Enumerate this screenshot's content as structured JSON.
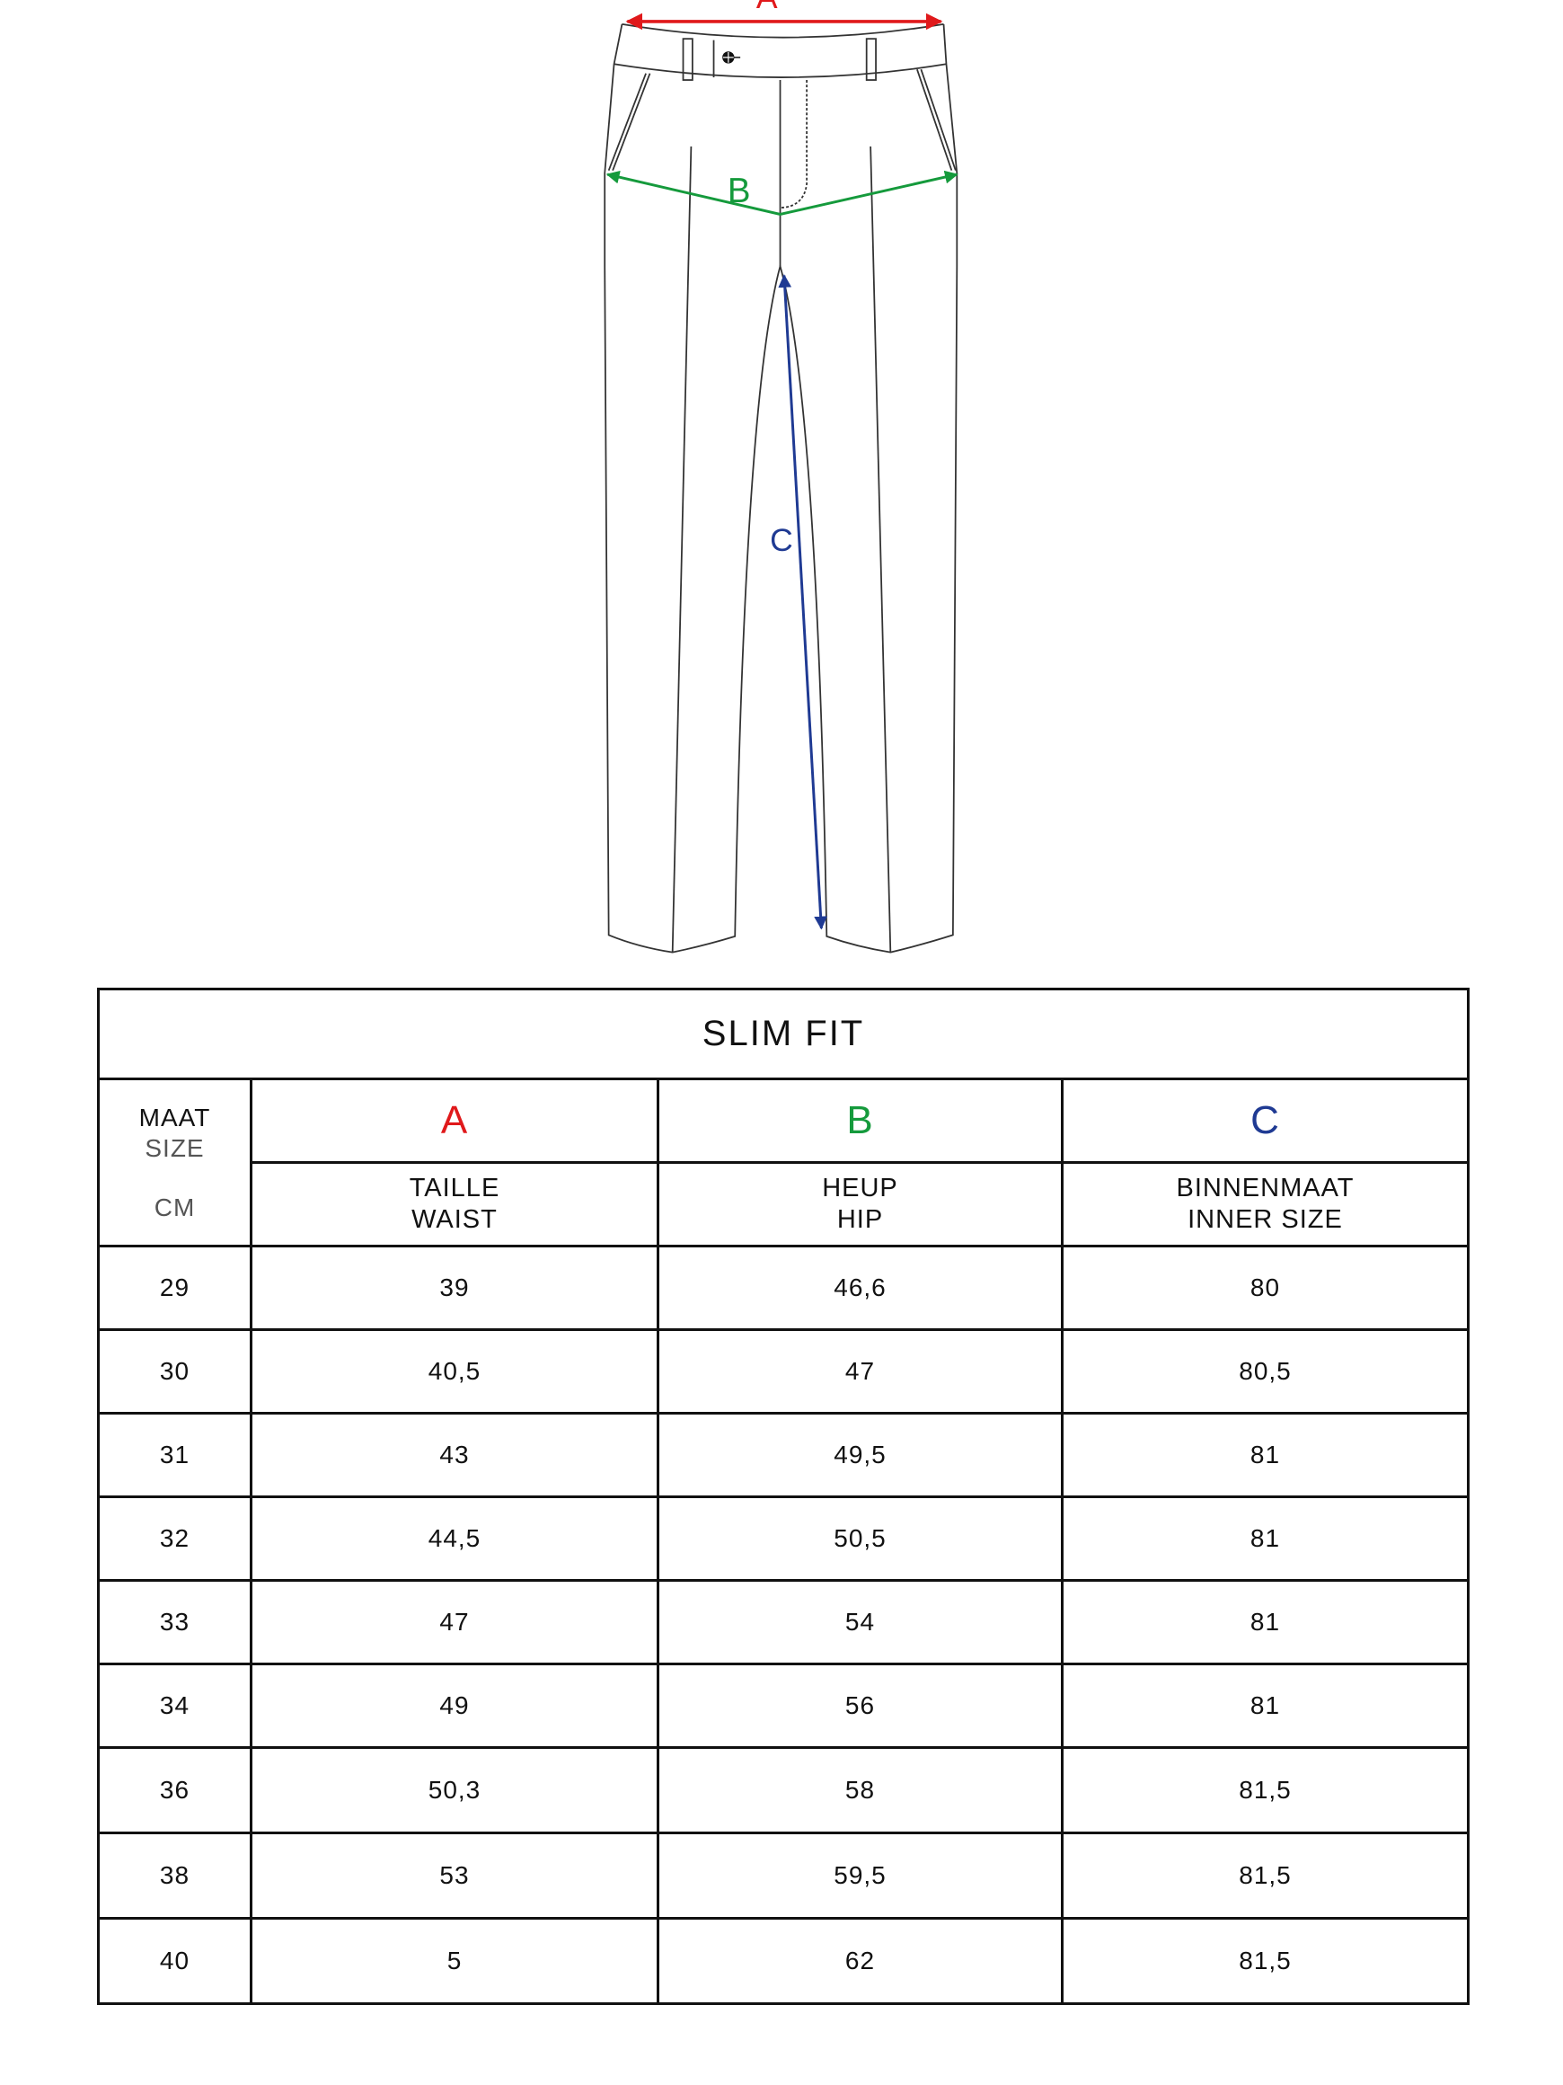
{
  "diagram": {
    "labels": {
      "a": "A",
      "b": "B",
      "c": "C"
    },
    "colors": {
      "a": "#e0191b",
      "b": "#159a3c",
      "c": "#1f3a93",
      "outline": "#333333"
    }
  },
  "table": {
    "title": "SLIM FIT",
    "size_header": {
      "nl": "MAAT",
      "en": "SIZE",
      "unit": "CM"
    },
    "columns": [
      {
        "letter": "A",
        "nl": "TAILLE",
        "en": "WAIST"
      },
      {
        "letter": "B",
        "nl": "HEUP",
        "en": "HIP"
      },
      {
        "letter": "C",
        "nl": "BINNENMAAT",
        "en": "INNER SIZE"
      }
    ],
    "rows": [
      [
        "29",
        "39",
        "46,6",
        "80"
      ],
      [
        "30",
        "40,5",
        "47",
        "80,5"
      ],
      [
        "31",
        "43",
        "49,5",
        "81"
      ],
      [
        "32",
        "44,5",
        "50,5",
        "81"
      ],
      [
        "33",
        "47",
        "54",
        "81"
      ],
      [
        "34",
        "49",
        "56",
        "81"
      ],
      [
        "36",
        "50,3",
        "58",
        "81,5"
      ],
      [
        "38",
        "53",
        "59,5",
        "81,5"
      ],
      [
        "40",
        "5",
        "62",
        "81,5"
      ]
    ]
  }
}
